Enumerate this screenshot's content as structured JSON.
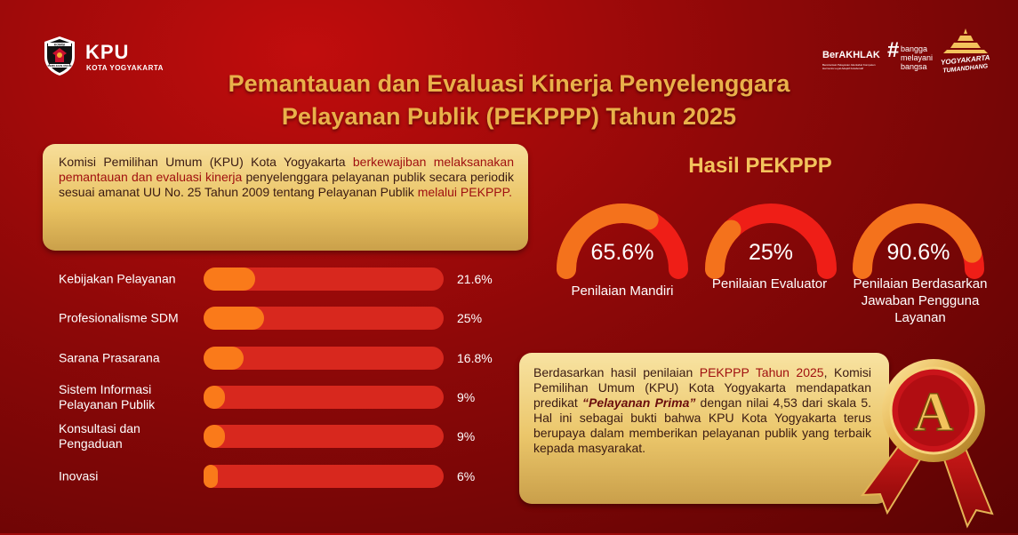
{
  "header": {
    "logo_text": "KPU",
    "logo_sub": "KOTA YOGYAKARTA",
    "emblem_word_top": "KOMISI",
    "emblem_word_bottom": "PEMILIHAN UMUM",
    "berakhlak": "BerAKHLAK",
    "berakhlak_sub": "Berorientasi Pelayanan Akuntabel Kompeten Harmonis Loyal Adaptif Kolaboratif",
    "bangga_hash": "#",
    "bangga_lines": [
      "bangga",
      "melayani",
      "bangsa"
    ],
    "jogja_lines": [
      "YOGYAKARTA",
      "TUMANDHANG"
    ]
  },
  "title_lines": [
    "Pemantauan dan Evaluasi Kinerja Penyelenggara",
    "Pelayanan Publik (PEKPPP) Tahun 2025"
  ],
  "intro": {
    "parts": [
      {
        "text": "Komisi Pemilihan Umum (KPU) Kota Yogyakarta ",
        "hl": false
      },
      {
        "text": "berkewajiban melaksanakan pemantauan dan evaluasi kinerja",
        "hl": true
      },
      {
        "text": " penyelenggara pelayanan publik secara periodik sesuai amanat UU No. 25 Tahun 2009 tentang Pelayanan Publik ",
        "hl": false
      },
      {
        "text": "melalui PEKPPP.",
        "hl": true
      }
    ]
  },
  "chart_data": [
    {
      "type": "bar",
      "orientation": "horizontal",
      "categories": [
        "Kebijakan Pelayanan",
        "Profesionalisme SDM",
        "Sarana Prasarana",
        "Sistem Informasi Pelayanan Publik",
        "Konsultasi dan Pengaduan",
        "Inovasi"
      ],
      "value_labels": [
        "21.6%",
        "25%",
        "16.8%",
        "9%",
        "9%",
        "6%"
      ],
      "values": [
        21.6,
        25,
        16.8,
        9,
        9,
        6
      ],
      "xlim": [
        0,
        100
      ],
      "colors": {
        "track": "#d8281e",
        "fill": "#fa7a1a"
      }
    },
    {
      "type": "gauge",
      "title": "Hasil PEKPPP",
      "items": [
        {
          "label": "Penilaian Mandiri",
          "value": 65.6,
          "display": "65.6%"
        },
        {
          "label": "Penilaian Evaluator",
          "value": 25,
          "display": "25%"
        },
        {
          "label": "Penilaian Berdasarkan Jawaban Pengguna Layanan",
          "value": 90.6,
          "display": "90.6%"
        }
      ],
      "colors": {
        "track": "#ef1e17",
        "fill": "#f4721c"
      }
    }
  ],
  "result": {
    "parts": [
      {
        "text": "Berdasarkan hasil penilaian ",
        "style": "plain"
      },
      {
        "text": "PEKPPP Tahun 2025",
        "style": "hl"
      },
      {
        "text": ", Komisi Pemilihan Umum (KPU) Kota Yogyakarta mendapatkan predikat ",
        "style": "plain"
      },
      {
        "text": "“Pelayanan Prima”",
        "style": "strong"
      },
      {
        "text": " dengan nilai 4,53 dari skala 5. Hal ini sebagai bukti bahwa KPU Kota Yogyakarta terus berupaya dalam memberikan pelayanan publik yang terbaik kepada masyarakat.",
        "style": "plain"
      }
    ]
  },
  "medal": {
    "letter": "A"
  }
}
